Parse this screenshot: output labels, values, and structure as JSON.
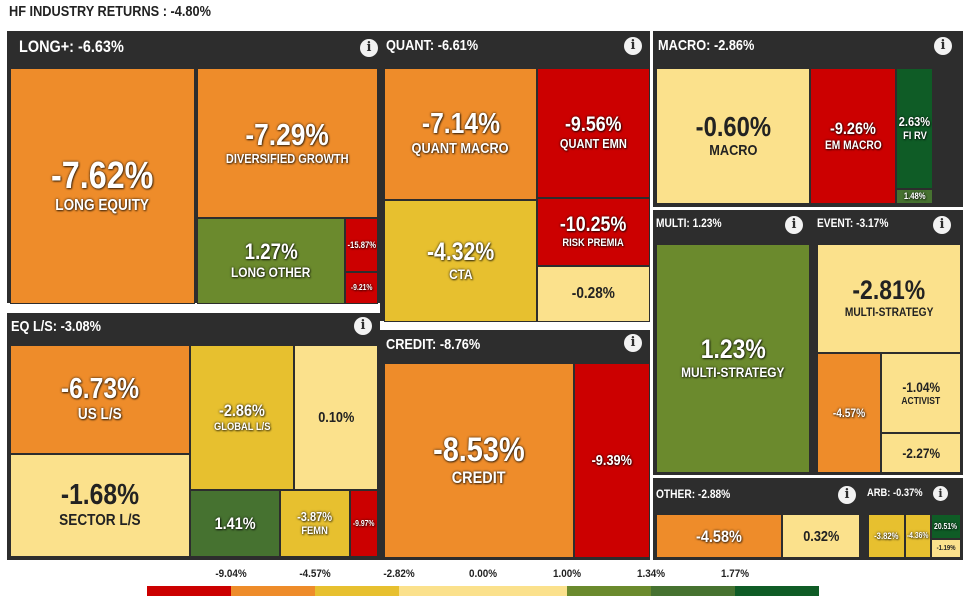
{
  "chart_data": {
    "type": "treemap",
    "title": "HF INDUSTRY RETURNS : -4.80%",
    "groups": [
      {
        "id": "long",
        "label": "LONG+: -6.63%",
        "value": -6.63,
        "children": [
          {
            "label": "LONG EQUITY",
            "value": -7.62,
            "text": "-7.62%"
          },
          {
            "label": "DIVERSIFIED GROWTH",
            "value": -7.29,
            "text": "-7.29%"
          },
          {
            "label": "LONG OTHER",
            "value": 1.27,
            "text": "1.27%"
          },
          {
            "label": "",
            "value": -15.87,
            "text": "-15.87%"
          },
          {
            "label": "",
            "value": -9.21,
            "text": "-9.21%"
          }
        ]
      },
      {
        "id": "quant",
        "label": "QUANT: -6.61%",
        "value": -6.61,
        "children": [
          {
            "label": "QUANT MACRO",
            "value": -7.14,
            "text": "-7.14%"
          },
          {
            "label": "QUANT EMN",
            "value": -9.56,
            "text": "-9.56%"
          },
          {
            "label": "CTA",
            "value": -4.32,
            "text": "-4.32%"
          },
          {
            "label": "RISK PREMIA",
            "value": -10.25,
            "text": "-10.25%"
          },
          {
            "label": "",
            "value": -0.28,
            "text": "-0.28%"
          }
        ]
      },
      {
        "id": "macro",
        "label": "MACRO: -2.86%",
        "value": -2.86,
        "children": [
          {
            "label": "MACRO",
            "value": -0.6,
            "text": "-0.60%"
          },
          {
            "label": "EM MACRO",
            "value": -9.26,
            "text": "-9.26%"
          },
          {
            "label": "FI RV",
            "value": 2.63,
            "text": "2.63%"
          },
          {
            "label": "",
            "value": 1.48,
            "text": "1.48%"
          }
        ]
      },
      {
        "id": "eqls",
        "label": "EQ L/S: -3.08%",
        "value": -3.08,
        "children": [
          {
            "label": "US L/S",
            "value": -6.73,
            "text": "-6.73%"
          },
          {
            "label": "SECTOR L/S",
            "value": -1.68,
            "text": "-1.68%"
          },
          {
            "label": "GLOBAL L/S",
            "value": -2.86,
            "text": "-2.86%"
          },
          {
            "label": "",
            "value": 0.1,
            "text": "0.10%"
          },
          {
            "label": "",
            "value": 1.41,
            "text": "1.41%"
          },
          {
            "label": "FEMN",
            "value": -3.87,
            "text": "-3.87%"
          },
          {
            "label": "",
            "value": -9.97,
            "text": "-9.97%"
          }
        ]
      },
      {
        "id": "credit",
        "label": "CREDIT: -8.76%",
        "value": -8.76,
        "children": [
          {
            "label": "CREDIT",
            "value": -8.53,
            "text": "-8.53%"
          },
          {
            "label": "",
            "value": -9.39,
            "text": "-9.39%"
          }
        ]
      },
      {
        "id": "multi",
        "label": "MULTI: 1.23%",
        "value": 1.23,
        "children": [
          {
            "label": "MULTI-STRATEGY",
            "value": 1.23,
            "text": "1.23%"
          }
        ]
      },
      {
        "id": "event",
        "label": "EVENT: -3.17%",
        "value": -3.17,
        "children": [
          {
            "label": "MULTI-STRATEGY",
            "value": -2.81,
            "text": "-2.81%"
          },
          {
            "label": "",
            "value": -4.57,
            "text": "-4.57%"
          },
          {
            "label": "ACTIVIST",
            "value": -1.04,
            "text": "-1.04%"
          },
          {
            "label": "",
            "value": -2.27,
            "text": "-2.27%"
          }
        ]
      },
      {
        "id": "other",
        "label": "OTHER: -2.88%",
        "value": -2.88,
        "children": [
          {
            "label": "",
            "value": -4.58,
            "text": "-4.58%"
          },
          {
            "label": "",
            "value": 0.32,
            "text": "0.32%"
          }
        ]
      },
      {
        "id": "arb",
        "label": "ARB: -0.37%",
        "value": -0.37,
        "children": [
          {
            "label": "",
            "value": -3.82,
            "text": "-3.82%"
          },
          {
            "label": "",
            "value": -4.36,
            "text": "-4.36%"
          },
          {
            "label": "",
            "value": 20.51,
            "text": "20.51%"
          },
          {
            "label": "",
            "value": -1.19,
            "text": "-1.19%"
          }
        ]
      }
    ],
    "legend": {
      "labels": [
        "-9.04%",
        "-4.57%",
        "-2.82%",
        "0.00%",
        "1.00%",
        "1.34%",
        "1.77%"
      ],
      "colors": [
        "#cc0000",
        "#ee8c2a",
        "#e7c02f",
        "#fbe18c",
        "#6b8a2d",
        "#467230",
        "#0f5c26"
      ]
    }
  }
}
